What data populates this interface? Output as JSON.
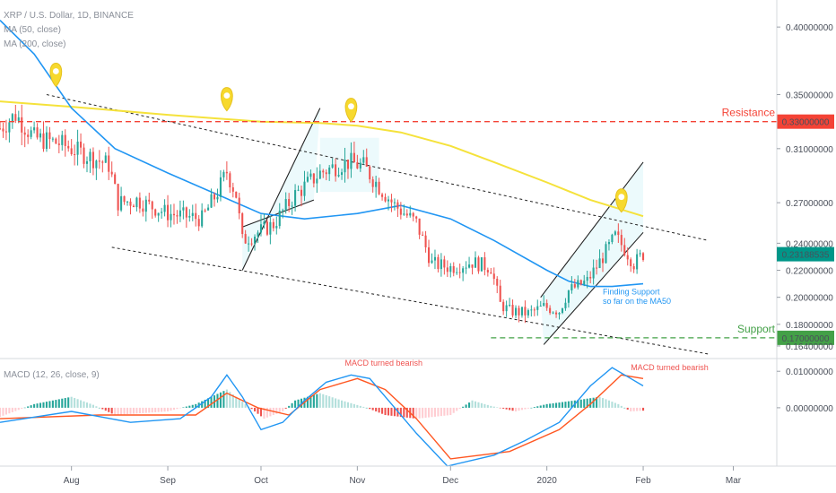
{
  "legend": {
    "symbol": "XRP / U.S. Dollar, 1D, BINANCE",
    "ma50": "MA (50, close)",
    "ma200": "MA (200, close)",
    "macd": "MACD (12, 26, close, 9)"
  },
  "colors": {
    "up": "#26a69a",
    "down": "#ef5350",
    "ma50": "#2196f3",
    "ma200": "#f5e23b",
    "resistance": "#f44336",
    "support": "#43a047",
    "price_tag": "#009688",
    "channel_fill": "#e0f7fa",
    "pin": "#f7d92e",
    "macd_line": "#2196f3",
    "signal_line": "#ff5722",
    "hist_up": "#26a69a",
    "hist_up_light": "#b2dfdb",
    "hist_down": "#ef5350",
    "hist_down_light": "#ffcdd2"
  },
  "chart_data": [
    {
      "type": "candlestick",
      "title": "XRP / U.S. Dollar, 1D, BINANCE",
      "ylim": [
        0.156,
        0.42
      ],
      "x_range": [
        "2019-07-09",
        "2020-03-15"
      ],
      "y_ticks": [
        "0.40000000",
        "0.35000000",
        "0.31000000",
        "0.27000000",
        "0.24000000",
        "0.22000000",
        "0.20000000",
        "0.18000000",
        "0.16400000"
      ],
      "y_tick_values": [
        0.4,
        0.35,
        0.31,
        0.27,
        0.24,
        0.22,
        0.2,
        0.18,
        0.164
      ],
      "x_ticks": [
        "Aug",
        "Sep",
        "Oct",
        "Nov",
        "Dec",
        "2020",
        "Feb",
        "Mar"
      ],
      "x_tick_dates": [
        "2019-08-01",
        "2019-09-01",
        "2019-10-01",
        "2019-11-01",
        "2019-12-01",
        "2020-01-01",
        "2020-02-01",
        "2020-03-01"
      ],
      "grid": false,
      "last_price": "0.23188535",
      "price_anchors": [
        [
          "2019-07-09",
          0.325
        ],
        [
          "2019-07-14",
          0.335
        ],
        [
          "2019-07-20",
          0.318
        ],
        [
          "2019-07-28",
          0.314
        ],
        [
          "2019-08-05",
          0.306
        ],
        [
          "2019-08-13",
          0.298
        ],
        [
          "2019-08-16",
          0.27
        ],
        [
          "2019-08-22",
          0.272
        ],
        [
          "2019-09-01",
          0.262
        ],
        [
          "2019-09-12",
          0.258
        ],
        [
          "2019-09-17",
          0.278
        ],
        [
          "2019-09-20",
          0.293
        ],
        [
          "2019-09-23",
          0.276
        ],
        [
          "2019-09-25",
          0.242
        ],
        [
          "2019-09-30",
          0.248
        ],
        [
          "2019-10-05",
          0.254
        ],
        [
          "2019-10-12",
          0.276
        ],
        [
          "2019-10-20",
          0.292
        ],
        [
          "2019-10-26",
          0.298
        ],
        [
          "2019-10-29",
          0.3
        ],
        [
          "2019-11-03",
          0.297
        ],
        [
          "2019-11-08",
          0.282
        ],
        [
          "2019-11-13",
          0.268
        ],
        [
          "2019-11-20",
          0.255
        ],
        [
          "2019-11-25",
          0.225
        ],
        [
          "2019-12-01",
          0.222
        ],
        [
          "2019-12-08",
          0.226
        ],
        [
          "2019-12-14",
          0.222
        ],
        [
          "2019-12-17",
          0.195
        ],
        [
          "2019-12-20",
          0.19
        ],
        [
          "2019-12-26",
          0.188
        ],
        [
          "2019-12-31",
          0.193
        ],
        [
          "2020-01-05",
          0.19
        ],
        [
          "2020-01-08",
          0.205
        ],
        [
          "2020-01-14",
          0.212
        ],
        [
          "2020-01-19",
          0.23
        ],
        [
          "2020-01-23",
          0.245
        ],
        [
          "2020-01-26",
          0.236
        ],
        [
          "2020-01-29",
          0.225
        ],
        [
          "2020-02-01",
          0.232
        ]
      ],
      "ma50_points": [
        [
          "2019-07-09",
          0.405
        ],
        [
          "2019-07-20",
          0.38
        ],
        [
          "2019-08-01",
          0.34
        ],
        [
          "2019-08-15",
          0.31
        ],
        [
          "2019-09-01",
          0.292
        ],
        [
          "2019-09-15",
          0.278
        ],
        [
          "2019-10-01",
          0.262
        ],
        [
          "2019-10-15",
          0.258
        ],
        [
          "2019-11-01",
          0.262
        ],
        [
          "2019-11-15",
          0.268
        ],
        [
          "2019-12-01",
          0.258
        ],
        [
          "2019-12-15",
          0.242
        ],
        [
          "2020-01-01",
          0.22
        ],
        [
          "2020-01-08",
          0.212
        ],
        [
          "2020-01-15",
          0.208
        ],
        [
          "2020-01-22",
          0.208
        ],
        [
          "2020-02-01",
          0.21
        ]
      ],
      "ma200_points": [
        [
          "2019-07-09",
          0.345
        ],
        [
          "2019-08-01",
          0.341
        ],
        [
          "2019-09-01",
          0.335
        ],
        [
          "2019-10-01",
          0.33
        ],
        [
          "2019-10-20",
          0.329
        ],
        [
          "2019-11-01",
          0.327
        ],
        [
          "2019-11-15",
          0.322
        ],
        [
          "2019-12-01",
          0.312
        ],
        [
          "2019-12-15",
          0.3
        ],
        [
          "2020-01-01",
          0.285
        ],
        [
          "2020-01-15",
          0.272
        ],
        [
          "2020-02-01",
          0.26
        ]
      ],
      "levels": [
        {
          "name": "Resistance",
          "value": 0.33,
          "value_label": "0.33000000",
          "from": "2019-07-09"
        },
        {
          "name": "Support",
          "value": 0.17,
          "value_label": "0.17000000",
          "from": "2019-12-14"
        }
      ],
      "trendlines": [
        {
          "style": "dashed",
          "from": [
            "2019-07-24",
            0.35
          ],
          "to": [
            "2020-02-22",
            0.242
          ]
        },
        {
          "style": "dashed",
          "from": [
            "2019-08-14",
            0.237
          ],
          "to": [
            "2020-02-22",
            0.158
          ]
        },
        {
          "style": "solid",
          "from": [
            "2019-09-25",
            0.22
          ],
          "to": [
            "2019-10-20",
            0.34
          ]
        },
        {
          "style": "solid",
          "from": [
            "2019-09-25",
            0.252
          ],
          "to": [
            "2019-10-18",
            0.272
          ]
        },
        {
          "style": "solid",
          "from": [
            "2019-12-31",
            0.165
          ],
          "to": [
            "2020-02-01",
            0.248
          ]
        },
        {
          "style": "solid",
          "from": [
            "2019-12-30",
            0.2
          ],
          "to": [
            "2020-02-01",
            0.3
          ]
        }
      ],
      "pins": [
        {
          "date": "2019-07-27",
          "price": 0.356
        },
        {
          "date": "2019-09-20",
          "price": 0.338
        },
        {
          "date": "2019-10-30",
          "price": 0.33
        },
        {
          "date": "2020-01-25",
          "price": 0.263
        }
      ],
      "annotations": [
        {
          "text": "Finding Support",
          "date": "2020-01-19",
          "price": 0.202
        },
        {
          "text": "so far on the MA50",
          "date": "2020-01-19",
          "price": 0.195
        }
      ]
    },
    {
      "type": "macd",
      "title": "MACD (12, 26, close, 9)",
      "ylim": [
        -0.016,
        0.013
      ],
      "y_ticks": [
        "0.01000000",
        "0.00000000"
      ],
      "y_tick_values": [
        0.01,
        0.0
      ],
      "macd_points": [
        [
          "2019-07-09",
          -0.004
        ],
        [
          "2019-08-01",
          -0.001
        ],
        [
          "2019-08-20",
          -0.004
        ],
        [
          "2019-09-05",
          -0.003
        ],
        [
          "2019-09-15",
          0.003
        ],
        [
          "2019-09-20",
          0.009
        ],
        [
          "2019-09-25",
          0.003
        ],
        [
          "2019-10-01",
          -0.006
        ],
        [
          "2019-10-08",
          -0.004
        ],
        [
          "2019-10-15",
          0.002
        ],
        [
          "2019-10-22",
          0.007
        ],
        [
          "2019-10-30",
          0.009
        ],
        [
          "2019-11-05",
          0.008
        ],
        [
          "2019-11-12",
          0.001
        ],
        [
          "2019-11-20",
          -0.007
        ],
        [
          "2019-11-30",
          -0.016
        ],
        [
          "2019-12-15",
          -0.013
        ],
        [
          "2019-12-25",
          -0.009
        ],
        [
          "2020-01-05",
          -0.004
        ],
        [
          "2020-01-15",
          0.006
        ],
        [
          "2020-01-22",
          0.011
        ],
        [
          "2020-01-28",
          0.008
        ],
        [
          "2020-02-01",
          0.006
        ]
      ],
      "signal_points": [
        [
          "2019-07-09",
          -0.003
        ],
        [
          "2019-08-10",
          -0.002
        ],
        [
          "2019-09-10",
          -0.002
        ],
        [
          "2019-09-20",
          0.004
        ],
        [
          "2019-09-30",
          0.0
        ],
        [
          "2019-10-10",
          -0.002
        ],
        [
          "2019-10-20",
          0.005
        ],
        [
          "2019-11-01",
          0.008
        ],
        [
          "2019-11-10",
          0.005
        ],
        [
          "2019-11-20",
          -0.003
        ],
        [
          "2019-12-01",
          -0.014
        ],
        [
          "2019-12-20",
          -0.012
        ],
        [
          "2020-01-05",
          -0.006
        ],
        [
          "2020-01-15",
          0.001
        ],
        [
          "2020-01-25",
          0.009
        ],
        [
          "2020-02-01",
          0.008
        ]
      ],
      "histogram_anchors": [
        [
          "2019-07-09",
          -0.0025
        ],
        [
          "2019-07-20",
          0.001
        ],
        [
          "2019-08-01",
          0.003
        ],
        [
          "2019-08-08",
          0.0008
        ],
        [
          "2019-08-15",
          -0.002
        ],
        [
          "2019-09-01",
          -0.001
        ],
        [
          "2019-09-10",
          0.001
        ],
        [
          "2019-09-20",
          0.005
        ],
        [
          "2019-09-26",
          0.001
        ],
        [
          "2019-10-02",
          -0.003
        ],
        [
          "2019-10-08",
          -0.001
        ],
        [
          "2019-10-12",
          0.002
        ],
        [
          "2019-10-20",
          0.004
        ],
        [
          "2019-10-27",
          0.002
        ],
        [
          "2019-11-04",
          0.0
        ],
        [
          "2019-11-10",
          -0.002
        ],
        [
          "2019-11-20",
          -0.003
        ],
        [
          "2019-12-01",
          -0.002
        ],
        [
          "2019-12-08",
          0.002
        ],
        [
          "2019-12-14",
          0.0005
        ],
        [
          "2019-12-22",
          -0.001
        ],
        [
          "2020-01-01",
          0.001
        ],
        [
          "2020-01-10",
          0.002
        ],
        [
          "2020-01-18",
          0.003
        ],
        [
          "2020-01-24",
          0.001
        ],
        [
          "2020-01-28",
          -0.001
        ],
        [
          "2020-02-01",
          -0.0008
        ]
      ],
      "annotations": [
        {
          "text": "MACD turned bearish",
          "date": "2019-10-28",
          "value": 0.0115
        },
        {
          "text": "MACD turned bearish",
          "date": "2020-01-28",
          "value": 0.0103
        }
      ]
    }
  ]
}
